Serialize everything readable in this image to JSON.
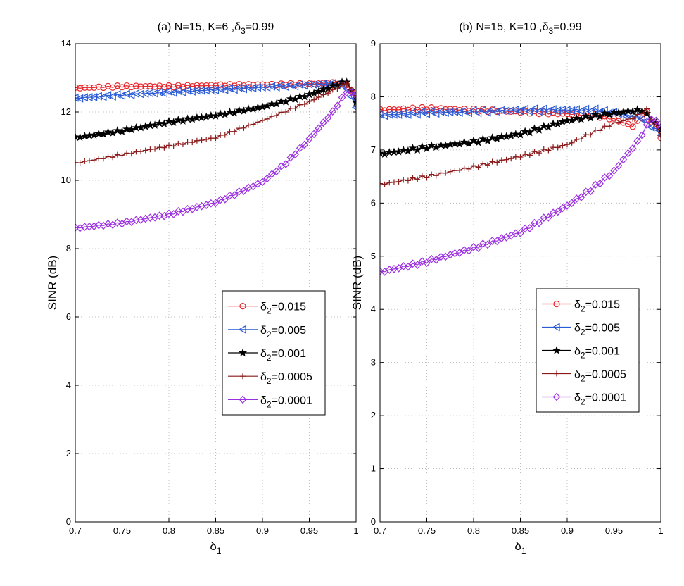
{
  "chart_data": [
    {
      "type": "line",
      "title_prefix": "(a) N=15, K=6 ,",
      "title_symbol": "δ",
      "title_sub": "3",
      "title_suffix": "=0.99",
      "xlabel_symbol": "δ",
      "xlabel_sub": "1",
      "ylabel": "SINR (dB)",
      "xlim": [
        0.7,
        1.0
      ],
      "ylim": [
        0,
        14
      ],
      "xticks": [
        0.7,
        0.75,
        0.8,
        0.85,
        0.9,
        0.95,
        1.0
      ],
      "xtick_labels": [
        "0.7",
        "0.75",
        "0.8",
        "0.85",
        "0.9",
        "0.95",
        "1"
      ],
      "yticks": [
        0,
        2,
        4,
        6,
        8,
        10,
        12,
        14
      ],
      "ytick_labels": [
        "0",
        "2",
        "4",
        "6",
        "8",
        "10",
        "12",
        "14"
      ],
      "grid": true,
      "legend_position": "lower-right",
      "series": [
        {
          "name": "δ2=0.015",
          "label_sub": "2",
          "label_value": "=0.015",
          "color": "#e8262b",
          "marker": "circle",
          "points": [
            [
              0.7,
              12.7
            ],
            [
              0.75,
              12.75
            ],
            [
              0.8,
              12.75
            ],
            [
              0.85,
              12.78
            ],
            [
              0.9,
              12.8
            ],
            [
              0.95,
              12.82
            ],
            [
              0.975,
              12.85
            ],
            [
              0.99,
              12.82
            ],
            [
              1.0,
              12.4
            ]
          ]
        },
        {
          "name": "δ2=0.005",
          "label_sub": "2",
          "label_value": "=0.005",
          "color": "#2a5ad6",
          "marker": "triangle-left",
          "points": [
            [
              0.7,
              12.4
            ],
            [
              0.75,
              12.5
            ],
            [
              0.8,
              12.58
            ],
            [
              0.85,
              12.65
            ],
            [
              0.9,
              12.72
            ],
            [
              0.95,
              12.8
            ],
            [
              0.98,
              12.83
            ],
            [
              0.99,
              12.7
            ],
            [
              1.0,
              12.15
            ]
          ]
        },
        {
          "name": "δ2=0.001",
          "label_sub": "2",
          "label_value": "=0.001",
          "color": "#000000",
          "marker": "star",
          "points": [
            [
              0.7,
              11.25
            ],
            [
              0.75,
              11.45
            ],
            [
              0.8,
              11.7
            ],
            [
              0.85,
              11.9
            ],
            [
              0.9,
              12.15
            ],
            [
              0.95,
              12.5
            ],
            [
              0.98,
              12.8
            ],
            [
              0.99,
              12.9
            ],
            [
              1.0,
              12.3
            ]
          ]
        },
        {
          "name": "δ2=0.0005",
          "label_sub": "2",
          "label_value": "=0.0005",
          "color": "#8b1a1a",
          "marker": "plus",
          "points": [
            [
              0.7,
              10.5
            ],
            [
              0.75,
              10.75
            ],
            [
              0.8,
              11.0
            ],
            [
              0.85,
              11.25
            ],
            [
              0.9,
              11.75
            ],
            [
              0.95,
              12.3
            ],
            [
              0.98,
              12.7
            ],
            [
              0.99,
              12.85
            ],
            [
              1.0,
              12.4
            ]
          ]
        },
        {
          "name": "δ2=0.0001",
          "label_sub": "2",
          "label_value": "=0.0001",
          "color": "#9b30e0",
          "marker": "diamond",
          "points": [
            [
              0.7,
              8.6
            ],
            [
              0.75,
              8.75
            ],
            [
              0.8,
              9.0
            ],
            [
              0.85,
              9.35
            ],
            [
              0.9,
              9.95
            ],
            [
              0.925,
              10.5
            ],
            [
              0.95,
              11.2
            ],
            [
              0.975,
              12.0
            ],
            [
              0.99,
              12.6
            ],
            [
              1.0,
              12.5
            ]
          ]
        }
      ]
    },
    {
      "type": "line",
      "title_prefix": "(b) N=15, K=10 ,",
      "title_symbol": "δ",
      "title_sub": "3",
      "title_suffix": "=0.99",
      "xlabel_symbol": "δ",
      "xlabel_sub": "1",
      "ylabel": "SINR (dB)",
      "xlim": [
        0.7,
        1.0
      ],
      "ylim": [
        0,
        9
      ],
      "xticks": [
        0.7,
        0.75,
        0.8,
        0.85,
        0.9,
        0.95,
        1.0
      ],
      "xtick_labels": [
        "0.7",
        "0.75",
        "0.8",
        "0.85",
        "0.9",
        "0.95",
        "1"
      ],
      "yticks": [
        0,
        1,
        2,
        3,
        4,
        5,
        6,
        7,
        8,
        9
      ],
      "ytick_labels": [
        "0",
        "1",
        "2",
        "3",
        "4",
        "5",
        "6",
        "7",
        "8",
        "9"
      ],
      "grid": true,
      "legend_position": "lower-right",
      "series": [
        {
          "name": "δ2=0.015",
          "label_sub": "2",
          "label_value": "=0.015",
          "color": "#e8262b",
          "marker": "circle",
          "points": [
            [
              0.7,
              7.75
            ],
            [
              0.75,
              7.78
            ],
            [
              0.8,
              7.75
            ],
            [
              0.85,
              7.72
            ],
            [
              0.9,
              7.68
            ],
            [
              0.93,
              7.65
            ],
            [
              0.95,
              7.58
            ],
            [
              0.97,
              7.45
            ],
            [
              0.985,
              7.7
            ],
            [
              1.0,
              7.25
            ]
          ]
        },
        {
          "name": "δ2=0.005",
          "label_sub": "2",
          "label_value": "=0.005",
          "color": "#2a5ad6",
          "marker": "triangle-left",
          "points": [
            [
              0.7,
              7.65
            ],
            [
              0.75,
              7.7
            ],
            [
              0.8,
              7.72
            ],
            [
              0.85,
              7.75
            ],
            [
              0.9,
              7.75
            ],
            [
              0.93,
              7.75
            ],
            [
              0.95,
              7.7
            ],
            [
              0.98,
              7.6
            ],
            [
              1.0,
              7.3
            ]
          ]
        },
        {
          "name": "δ2=0.001",
          "label_sub": "2",
          "label_value": "=0.001",
          "color": "#000000",
          "marker": "star",
          "points": [
            [
              0.7,
              6.92
            ],
            [
              0.75,
              7.05
            ],
            [
              0.8,
              7.15
            ],
            [
              0.85,
              7.3
            ],
            [
              0.9,
              7.55
            ],
            [
              0.95,
              7.7
            ],
            [
              0.98,
              7.75
            ],
            [
              1.0,
              7.4
            ]
          ]
        },
        {
          "name": "δ2=0.0005",
          "label_sub": "2",
          "label_value": "=0.0005",
          "color": "#8b1a1a",
          "marker": "plus",
          "points": [
            [
              0.7,
              6.35
            ],
            [
              0.75,
              6.5
            ],
            [
              0.8,
              6.68
            ],
            [
              0.85,
              6.88
            ],
            [
              0.9,
              7.1
            ],
            [
              0.93,
              7.35
            ],
            [
              0.95,
              7.5
            ],
            [
              0.97,
              7.6
            ],
            [
              0.985,
              7.75
            ],
            [
              1.0,
              7.3
            ]
          ]
        },
        {
          "name": "δ2=0.0001",
          "label_sub": "2",
          "label_value": "=0.0001",
          "color": "#9b30e0",
          "marker": "diamond",
          "points": [
            [
              0.7,
              4.7
            ],
            [
              0.75,
              4.9
            ],
            [
              0.8,
              5.15
            ],
            [
              0.85,
              5.45
            ],
            [
              0.9,
              5.95
            ],
            [
              0.925,
              6.25
            ],
            [
              0.95,
              6.6
            ],
            [
              0.975,
              7.15
            ],
            [
              0.99,
              7.6
            ],
            [
              1.0,
              7.45
            ]
          ]
        }
      ]
    }
  ]
}
